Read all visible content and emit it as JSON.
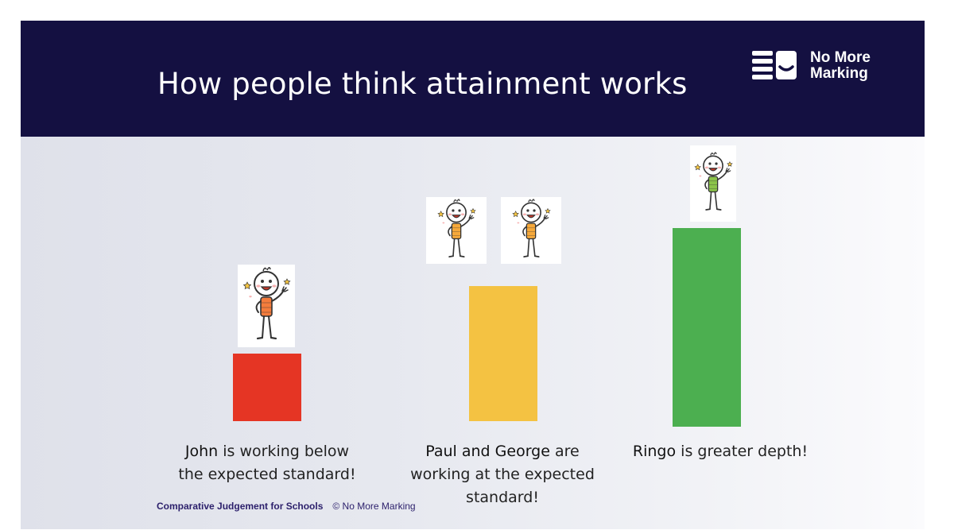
{
  "title": "How people think attainment works",
  "logo": {
    "line1": "No More",
    "line2": "Marking"
  },
  "footer": {
    "brand": "Comparative Judgement for Schools",
    "copyright": "© No More Marking"
  },
  "colors": {
    "banner": "#141041",
    "red": "#e53524",
    "yellow": "#f4c242",
    "green": "#4caf50"
  },
  "groups": [
    {
      "name": "John",
      "caption_rest_1": " is working below",
      "caption_line2": "the expected standard!",
      "bar_color": "#e53524",
      "bar_level": 0.35,
      "shirt": "#f47c3c"
    },
    {
      "name": "Paul and George",
      "caption_rest_1": " are",
      "caption_line2": "working at the expected",
      "caption_line3": "standard!",
      "bar_color": "#f4c242",
      "bar_level": 0.7,
      "shirt": "#f6a93b"
    },
    {
      "name": "Ringo",
      "caption_rest_1": " is greater depth!",
      "bar_color": "#4caf50",
      "bar_level": 1.0,
      "shirt": "#8bc34a"
    }
  ]
}
